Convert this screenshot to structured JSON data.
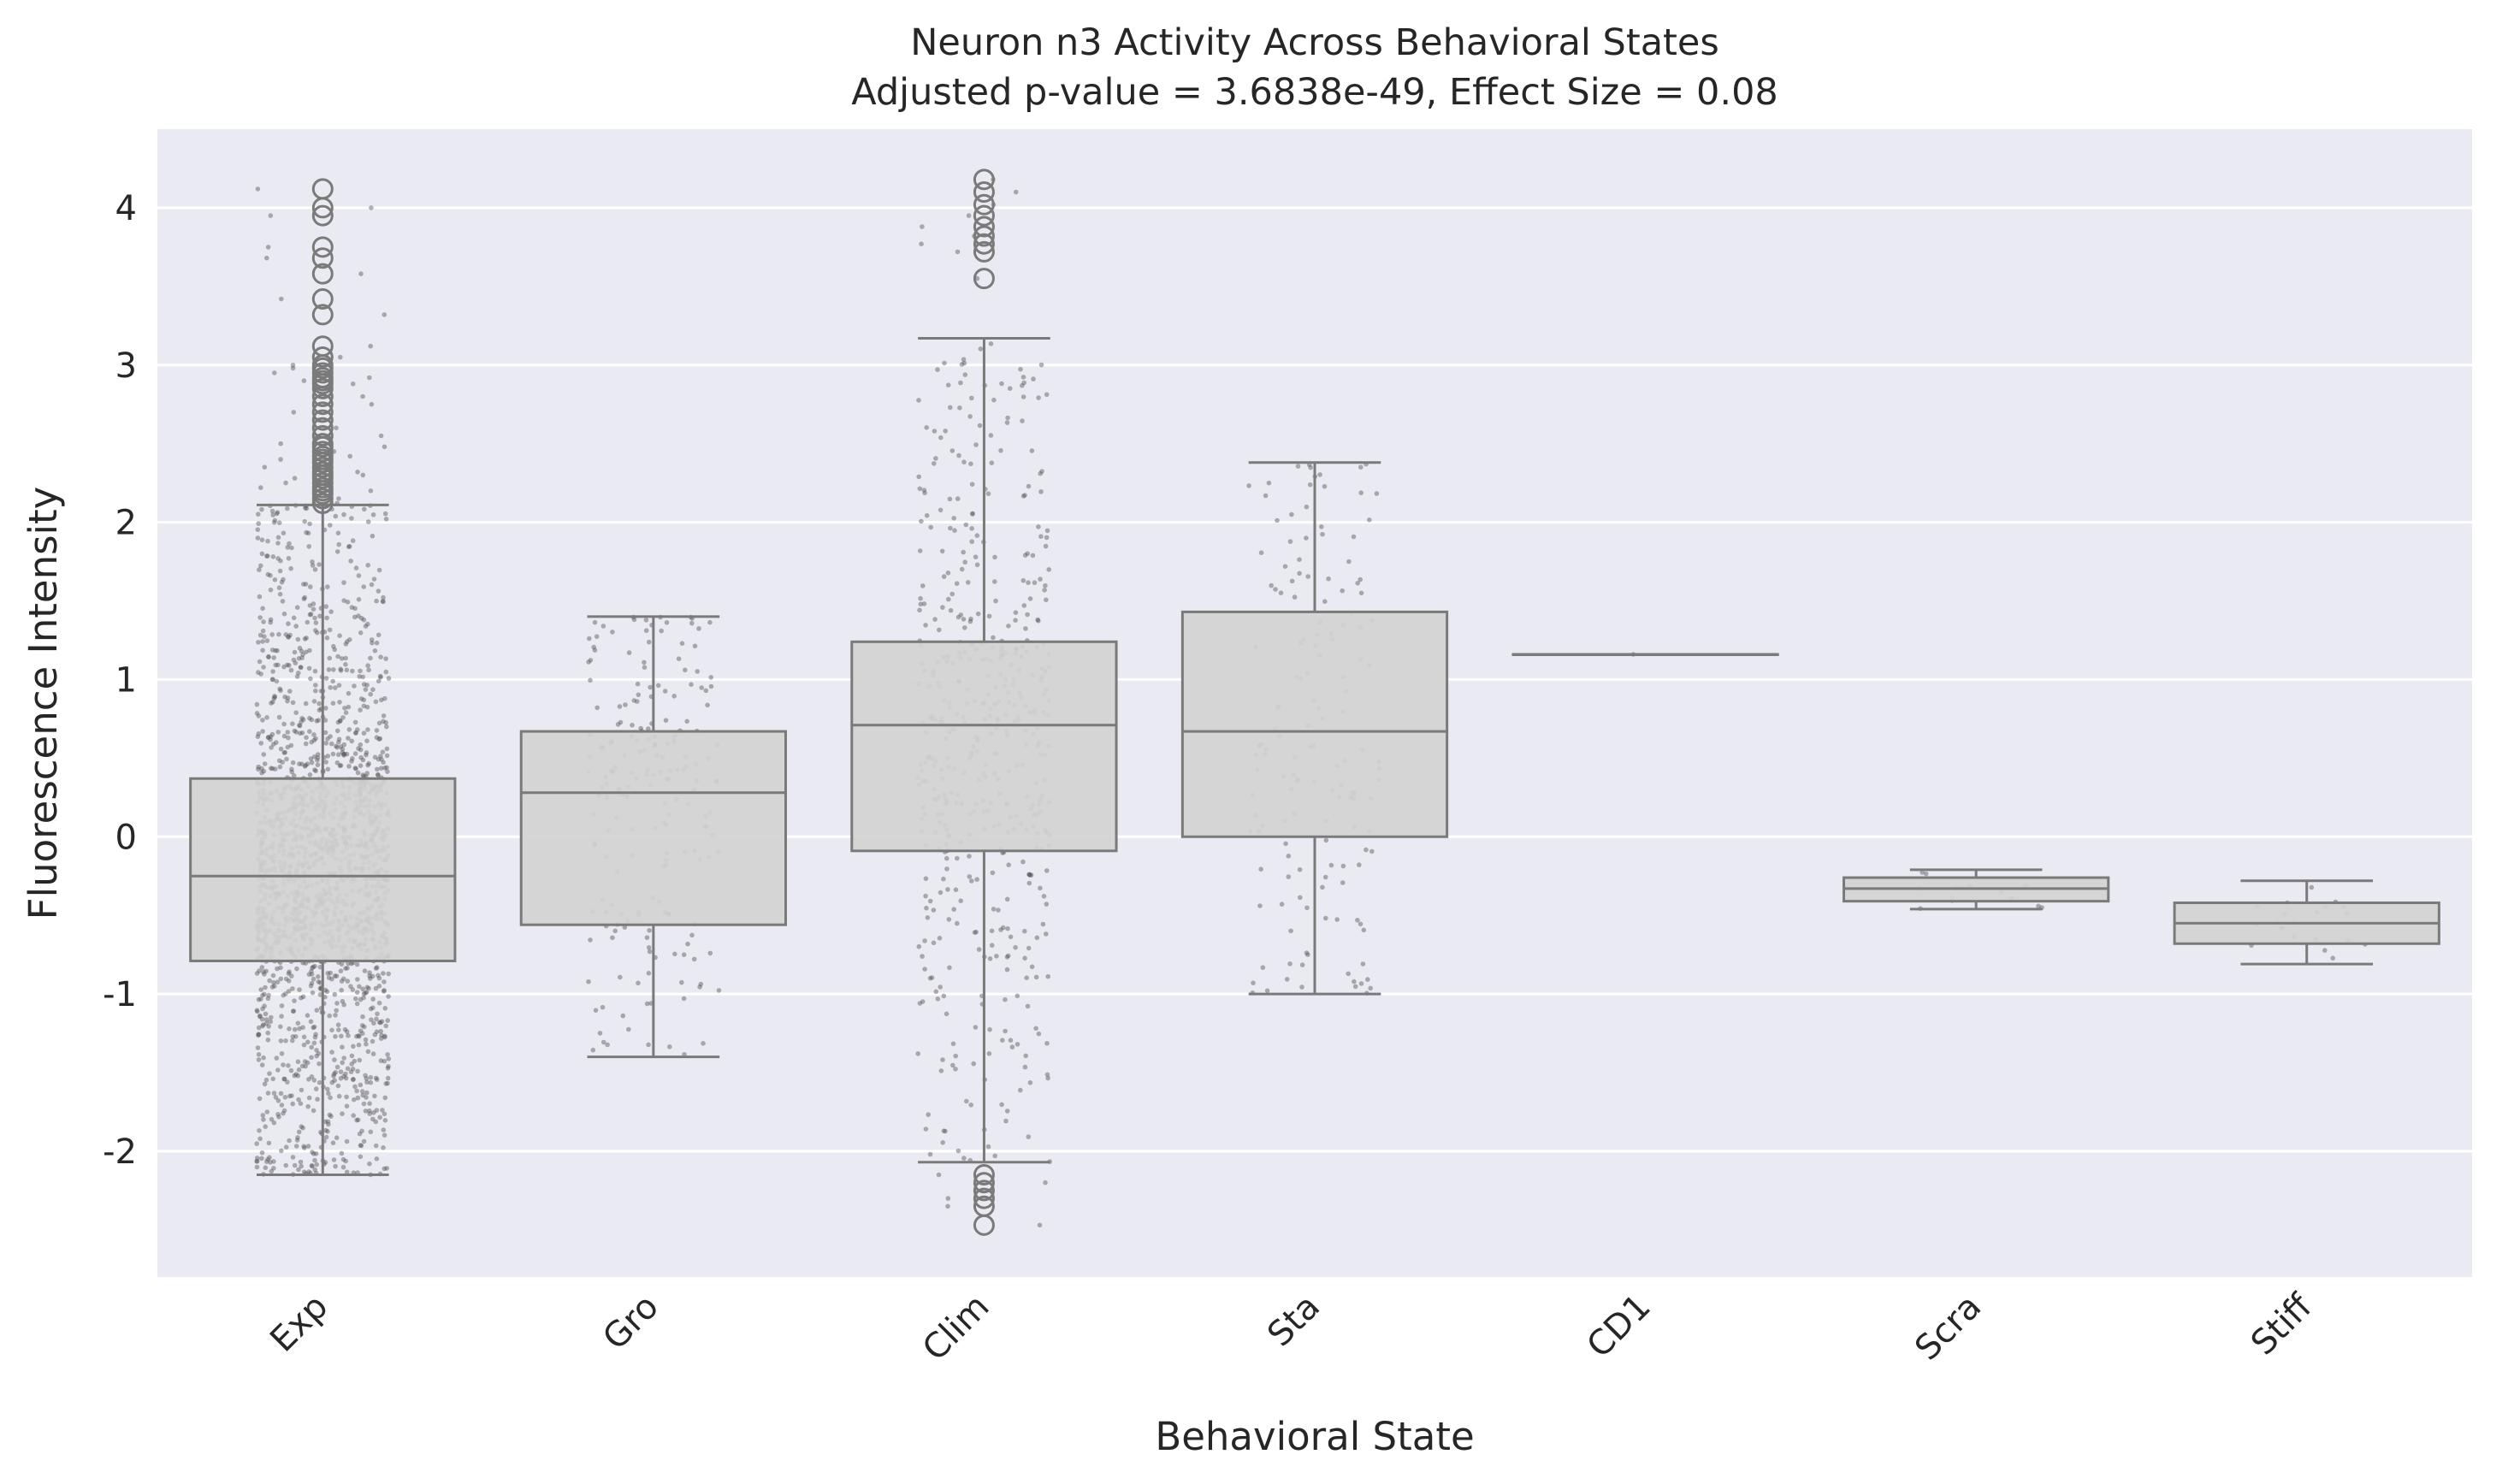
{
  "chart_data": {
    "type": "box",
    "title": "Neuron n3 Activity Across Behavioral States",
    "subtitle": "Adjusted p-value = 3.6838e-49, Effect Size = 0.08",
    "xlabel": "Behavioral State",
    "ylabel": "Fluorescence Intensity",
    "ylim": [
      -2.8,
      4.5
    ],
    "yticks": [
      -2,
      -1,
      0,
      1,
      2,
      3,
      4
    ],
    "ytick_labels": [
      "-2",
      "-1",
      "0",
      "1",
      "2",
      "3",
      "4"
    ],
    "grid": true,
    "legend": "none",
    "colors": {
      "plot_background": "#eaeaf2",
      "box_fill": "#d3d3d3",
      "box_edge": "#7a7a7a",
      "points": "#555555",
      "grid": "#ffffff"
    },
    "categories": [
      "Exp",
      "Gro",
      "Clim",
      "Sta",
      "CD1",
      "Scra",
      "Stiff"
    ],
    "boxes": [
      {
        "category": "Exp",
        "q1": -0.79,
        "median": -0.25,
        "q3": 0.37,
        "whisker_low": -2.15,
        "whisker_high": 2.11,
        "n_points": 1800,
        "outliers": [
          2.12,
          2.15,
          2.18,
          2.2,
          2.22,
          2.25,
          2.28,
          2.3,
          2.32,
          2.35,
          2.38,
          2.4,
          2.42,
          2.45,
          2.48,
          2.5,
          2.55,
          2.6,
          2.65,
          2.7,
          2.75,
          2.8,
          2.85,
          2.88,
          2.9,
          2.92,
          2.95,
          2.98,
          3.0,
          3.05,
          3.12,
          3.32,
          3.42,
          3.58,
          3.68,
          3.75,
          3.95,
          4.0,
          4.12
        ]
      },
      {
        "category": "Gro",
        "q1": -0.56,
        "median": 0.28,
        "q3": 0.67,
        "whisker_low": -1.4,
        "whisker_high": 1.4,
        "n_points": 200,
        "outliers": []
      },
      {
        "category": "Clim",
        "q1": -0.09,
        "median": 0.71,
        "q3": 1.24,
        "whisker_low": -2.07,
        "whisker_high": 3.17,
        "n_points": 500,
        "outliers": [
          3.55,
          3.72,
          3.77,
          3.82,
          3.88,
          3.95,
          4.02,
          4.1,
          4.18,
          -2.15,
          -2.2,
          -2.25,
          -2.3,
          -2.35,
          -2.47
        ]
      },
      {
        "category": "Sta",
        "q1": 0.0,
        "median": 0.67,
        "q3": 1.43,
        "whisker_low": -1.0,
        "whisker_high": 2.38,
        "n_points": 150,
        "outliers": []
      },
      {
        "category": "CD1",
        "q1": 1.16,
        "median": 1.16,
        "q3": 1.16,
        "whisker_low": 1.16,
        "whisker_high": 1.16,
        "n_points": 1,
        "outliers": []
      },
      {
        "category": "Scra",
        "q1": -0.41,
        "median": -0.33,
        "q3": -0.26,
        "whisker_low": -0.46,
        "whisker_high": -0.21,
        "n_points": 12,
        "outliers": []
      },
      {
        "category": "Stiff",
        "q1": -0.68,
        "median": -0.55,
        "q3": -0.42,
        "whisker_low": -0.81,
        "whisker_high": -0.28,
        "n_points": 20,
        "outliers": []
      }
    ]
  }
}
